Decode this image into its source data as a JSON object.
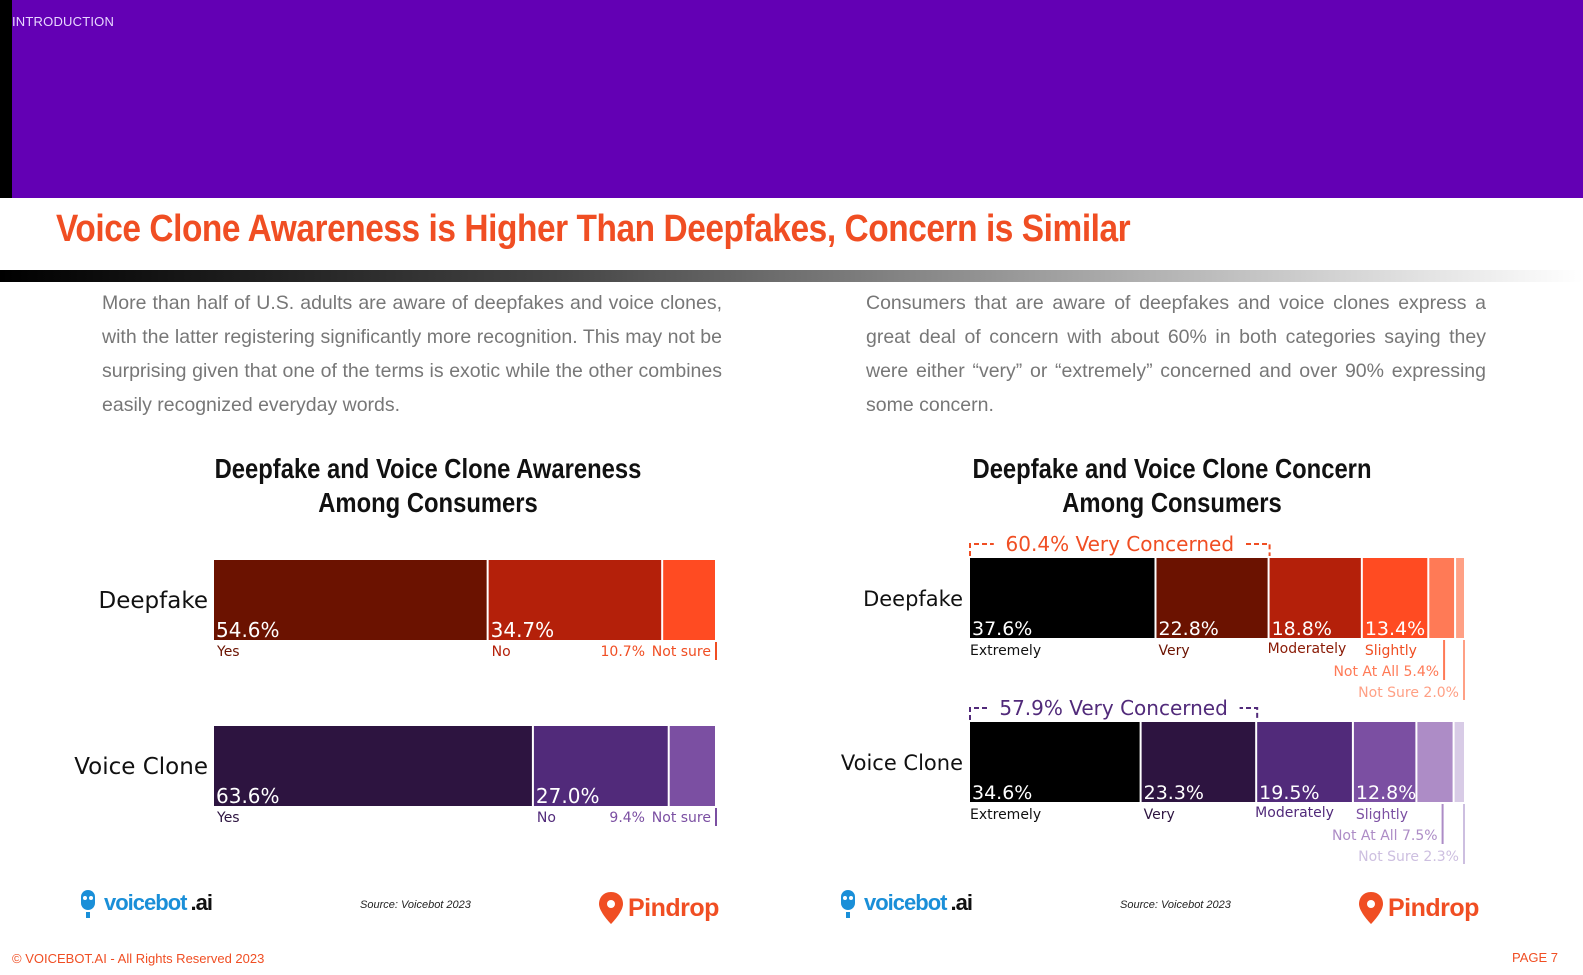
{
  "header": {
    "section_label": "INTRODUCTION",
    "title": "Voice Clone Awareness is Higher Than Deepfakes, Concern is Similar"
  },
  "paragraphs": {
    "left": "More than half of U.S. adults are aware of deepfakes and voice clones, with the latter registering significantly more recognition. This may not be surprising given that one of the terms is exotic while the other combines easily recognized everyday words.",
    "right": "Consumers that are aware of deepfakes and voice clones express a great deal of concern with about 60% in both categories saying they were either “very” or “extremely” concerned and over 90% expressing some concern."
  },
  "chart_titles": {
    "awareness_line1": "Deepfake and Voice Clone Awareness",
    "awareness_line2": "Among Consumers",
    "concern_line1": "Deepfake and Voice Clone Concern",
    "concern_line2": "Among Consumers"
  },
  "colors": {
    "banner": "#6300b4",
    "accent_orange": "#f04e23",
    "deepfake_scale": [
      "#000000",
      "#6b1200",
      "#b4200a",
      "#ff4b22",
      "#ff7a56",
      "#ffa085",
      "#ffbfa8"
    ],
    "voice_scale": [
      "#000000",
      "#2d1440",
      "#512a7a",
      "#7b4fa2",
      "#ad8cc6",
      "#d8cbe6",
      "#e6dcef"
    ]
  },
  "chart_data": [
    {
      "type": "bar",
      "orientation": "horizontal-stacked",
      "title": "Deepfake and Voice Clone Awareness Among Consumers",
      "categories": [
        "Deepfake",
        "Voice Clone"
      ],
      "series": [
        {
          "name": "Yes",
          "values": [
            54.6,
            63.6
          ]
        },
        {
          "name": "No",
          "values": [
            34.7,
            27.0
          ]
        },
        {
          "name": "Not sure",
          "values": [
            10.7,
            9.4
          ]
        }
      ],
      "value_labels": {
        "Deepfake": [
          "54.6%",
          "34.7%",
          "10.7%"
        ],
        "Voice Clone": [
          "63.6%",
          "27.0%",
          "9.4%"
        ]
      },
      "segment_labels": [
        "Yes",
        "No",
        "Not sure"
      ]
    },
    {
      "type": "bar",
      "orientation": "horizontal-stacked",
      "title": "Deepfake and Voice Clone Concern Among Consumers",
      "categories": [
        "Deepfake",
        "Voice Clone"
      ],
      "series": [
        {
          "name": "Extremely",
          "values": [
            37.6,
            34.6
          ]
        },
        {
          "name": "Very",
          "values": [
            22.8,
            23.3
          ]
        },
        {
          "name": "Moderately",
          "values": [
            18.8,
            19.5
          ]
        },
        {
          "name": "Slightly",
          "values": [
            13.4,
            12.8
          ]
        },
        {
          "name": "Not At All",
          "values": [
            5.4,
            7.5
          ]
        },
        {
          "name": "Not Sure",
          "values": [
            2.0,
            2.3
          ]
        }
      ],
      "value_labels": {
        "Deepfake": [
          "37.6%",
          "22.8%",
          "18.8%",
          "13.4%",
          "5.4%",
          "2.0%"
        ],
        "Voice Clone": [
          "34.6%",
          "23.3%",
          "19.5%",
          "12.8%",
          "7.5%",
          "2.3%"
        ]
      },
      "segment_labels": [
        "Extremely",
        "Very",
        "Moderately",
        "Slightly",
        "Not At All",
        "Not Sure"
      ],
      "annotations": {
        "Deepfake": "60.4% Very Concerned",
        "Voice Clone": "57.9% Very Concerned"
      }
    }
  ],
  "footer": {
    "source_left": "Source: Voicebot 2023",
    "source_right": "Source: Voicebot 2023",
    "voicebot_logo_text": "voicebot",
    "voicebot_logo_suffix": ".ai",
    "pindrop_logo_text": "Pindrop",
    "copyright": "© VOICEBOT.AI - All Rights Reserved 2023",
    "page_number": "PAGE 7"
  }
}
